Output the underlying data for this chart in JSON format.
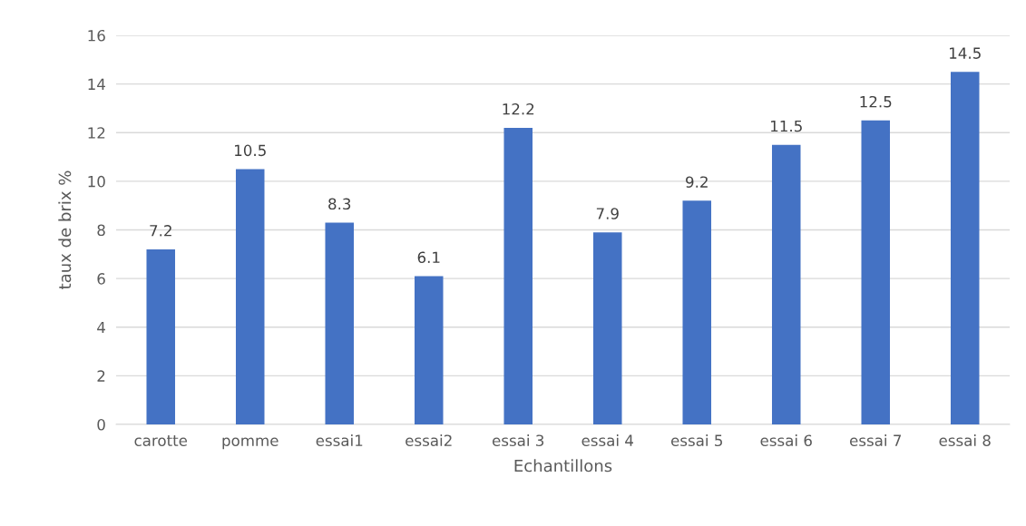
{
  "chart_data": {
    "type": "bar",
    "xlabel": "Echantillons",
    "ylabel": "taux de brix %",
    "categories": [
      "carotte",
      "pomme",
      "essai1",
      "essai2",
      "essai 3",
      "essai 4",
      "essai 5",
      "essai 6",
      "essai 7",
      "essai 8"
    ],
    "values": [
      7.2,
      10.5,
      8.3,
      6.1,
      12.2,
      7.9,
      9.2,
      11.5,
      12.5,
      14.5
    ],
    "color": "#4472c4",
    "ylim": [
      0,
      16
    ],
    "yticks": [
      0,
      2,
      4,
      6,
      8,
      10,
      12,
      14,
      16
    ],
    "grid": "y",
    "data_labels": true,
    "legend": false
  }
}
